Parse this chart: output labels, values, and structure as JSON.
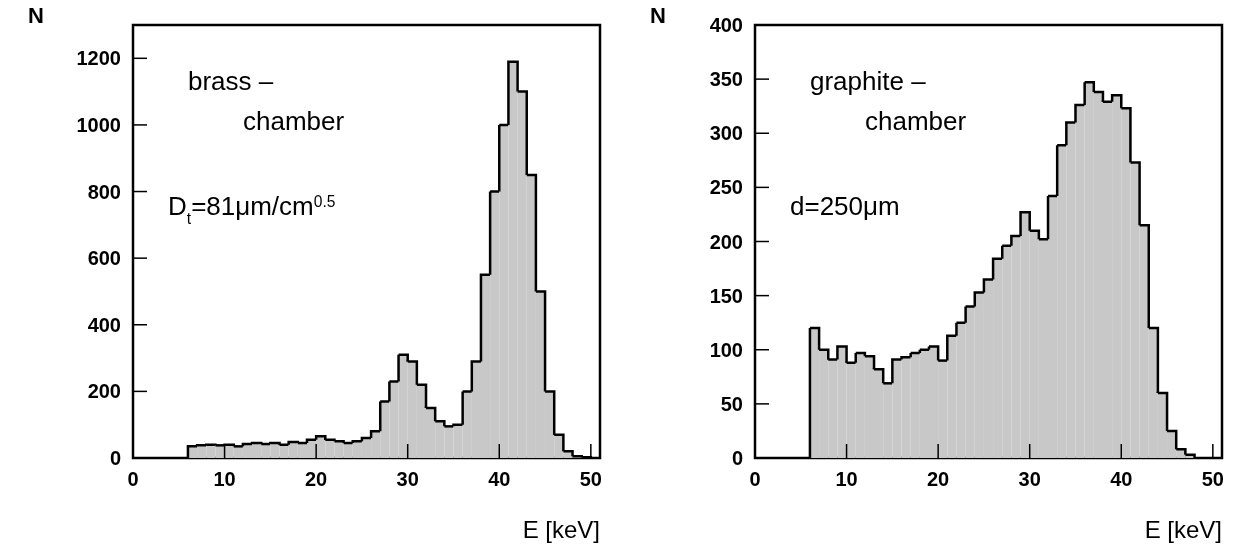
{
  "chart_data": [
    {
      "type": "histogram",
      "ylabel": "N",
      "xlabel": "E [keV]",
      "annotations": [
        "brass –",
        "chamber",
        "D$_{t}$=81μm/cm$^{0.5}$"
      ],
      "bins": [
        6,
        7,
        8,
        9,
        10,
        11,
        12,
        13,
        14,
        15,
        16,
        17,
        18,
        19,
        20,
        21,
        22,
        23,
        24,
        25,
        26,
        27,
        28,
        29,
        30,
        31,
        32,
        33,
        34,
        35,
        36,
        37,
        38,
        39,
        40,
        41,
        42,
        43,
        44,
        45,
        46,
        47,
        48,
        49,
        50
      ],
      "values": [
        35,
        38,
        40,
        38,
        40,
        35,
        42,
        45,
        42,
        45,
        40,
        48,
        45,
        55,
        65,
        55,
        50,
        45,
        50,
        60,
        80,
        170,
        230,
        310,
        290,
        220,
        150,
        110,
        95,
        100,
        200,
        290,
        550,
        800,
        1000,
        1190,
        1100,
        850,
        500,
        200,
        70,
        20,
        5,
        2
      ],
      "color": "#c8c8c8",
      "xlim": [
        0,
        51
      ],
      "ylim": [
        0,
        1300
      ],
      "xticks": [
        0,
        10,
        20,
        30,
        40,
        50
      ],
      "yticks": [
        0,
        200,
        400,
        600,
        800,
        1000,
        1200
      ]
    },
    {
      "type": "histogram",
      "ylabel": "N",
      "xlabel": "E [keV]",
      "annotations": [
        "graphite –",
        "chamber",
        "d=250μm"
      ],
      "bins": [
        6,
        7,
        8,
        9,
        10,
        11,
        12,
        13,
        14,
        15,
        16,
        17,
        18,
        19,
        20,
        21,
        22,
        23,
        24,
        25,
        26,
        27,
        28,
        29,
        30,
        31,
        32,
        33,
        34,
        35,
        36,
        37,
        38,
        39,
        40,
        41,
        42,
        43,
        44,
        45,
        46,
        47,
        48
      ],
      "values": [
        120,
        100,
        91,
        103,
        88,
        97,
        94,
        82,
        69,
        91,
        93,
        97,
        100,
        103,
        90,
        113,
        125,
        140,
        153,
        165,
        184,
        196,
        205,
        227,
        210,
        202,
        242,
        289,
        310,
        326,
        347,
        338,
        329,
        335,
        323,
        273,
        215,
        120,
        60,
        25,
        8,
        3
      ],
      "color": "#c8c8c8",
      "xlim": [
        0,
        51
      ],
      "ylim": [
        0,
        400
      ],
      "xticks": [
        0,
        10,
        20,
        30,
        40,
        50
      ],
      "yticks": [
        0,
        50,
        100,
        150,
        200,
        250,
        300,
        350,
        400
      ]
    }
  ]
}
